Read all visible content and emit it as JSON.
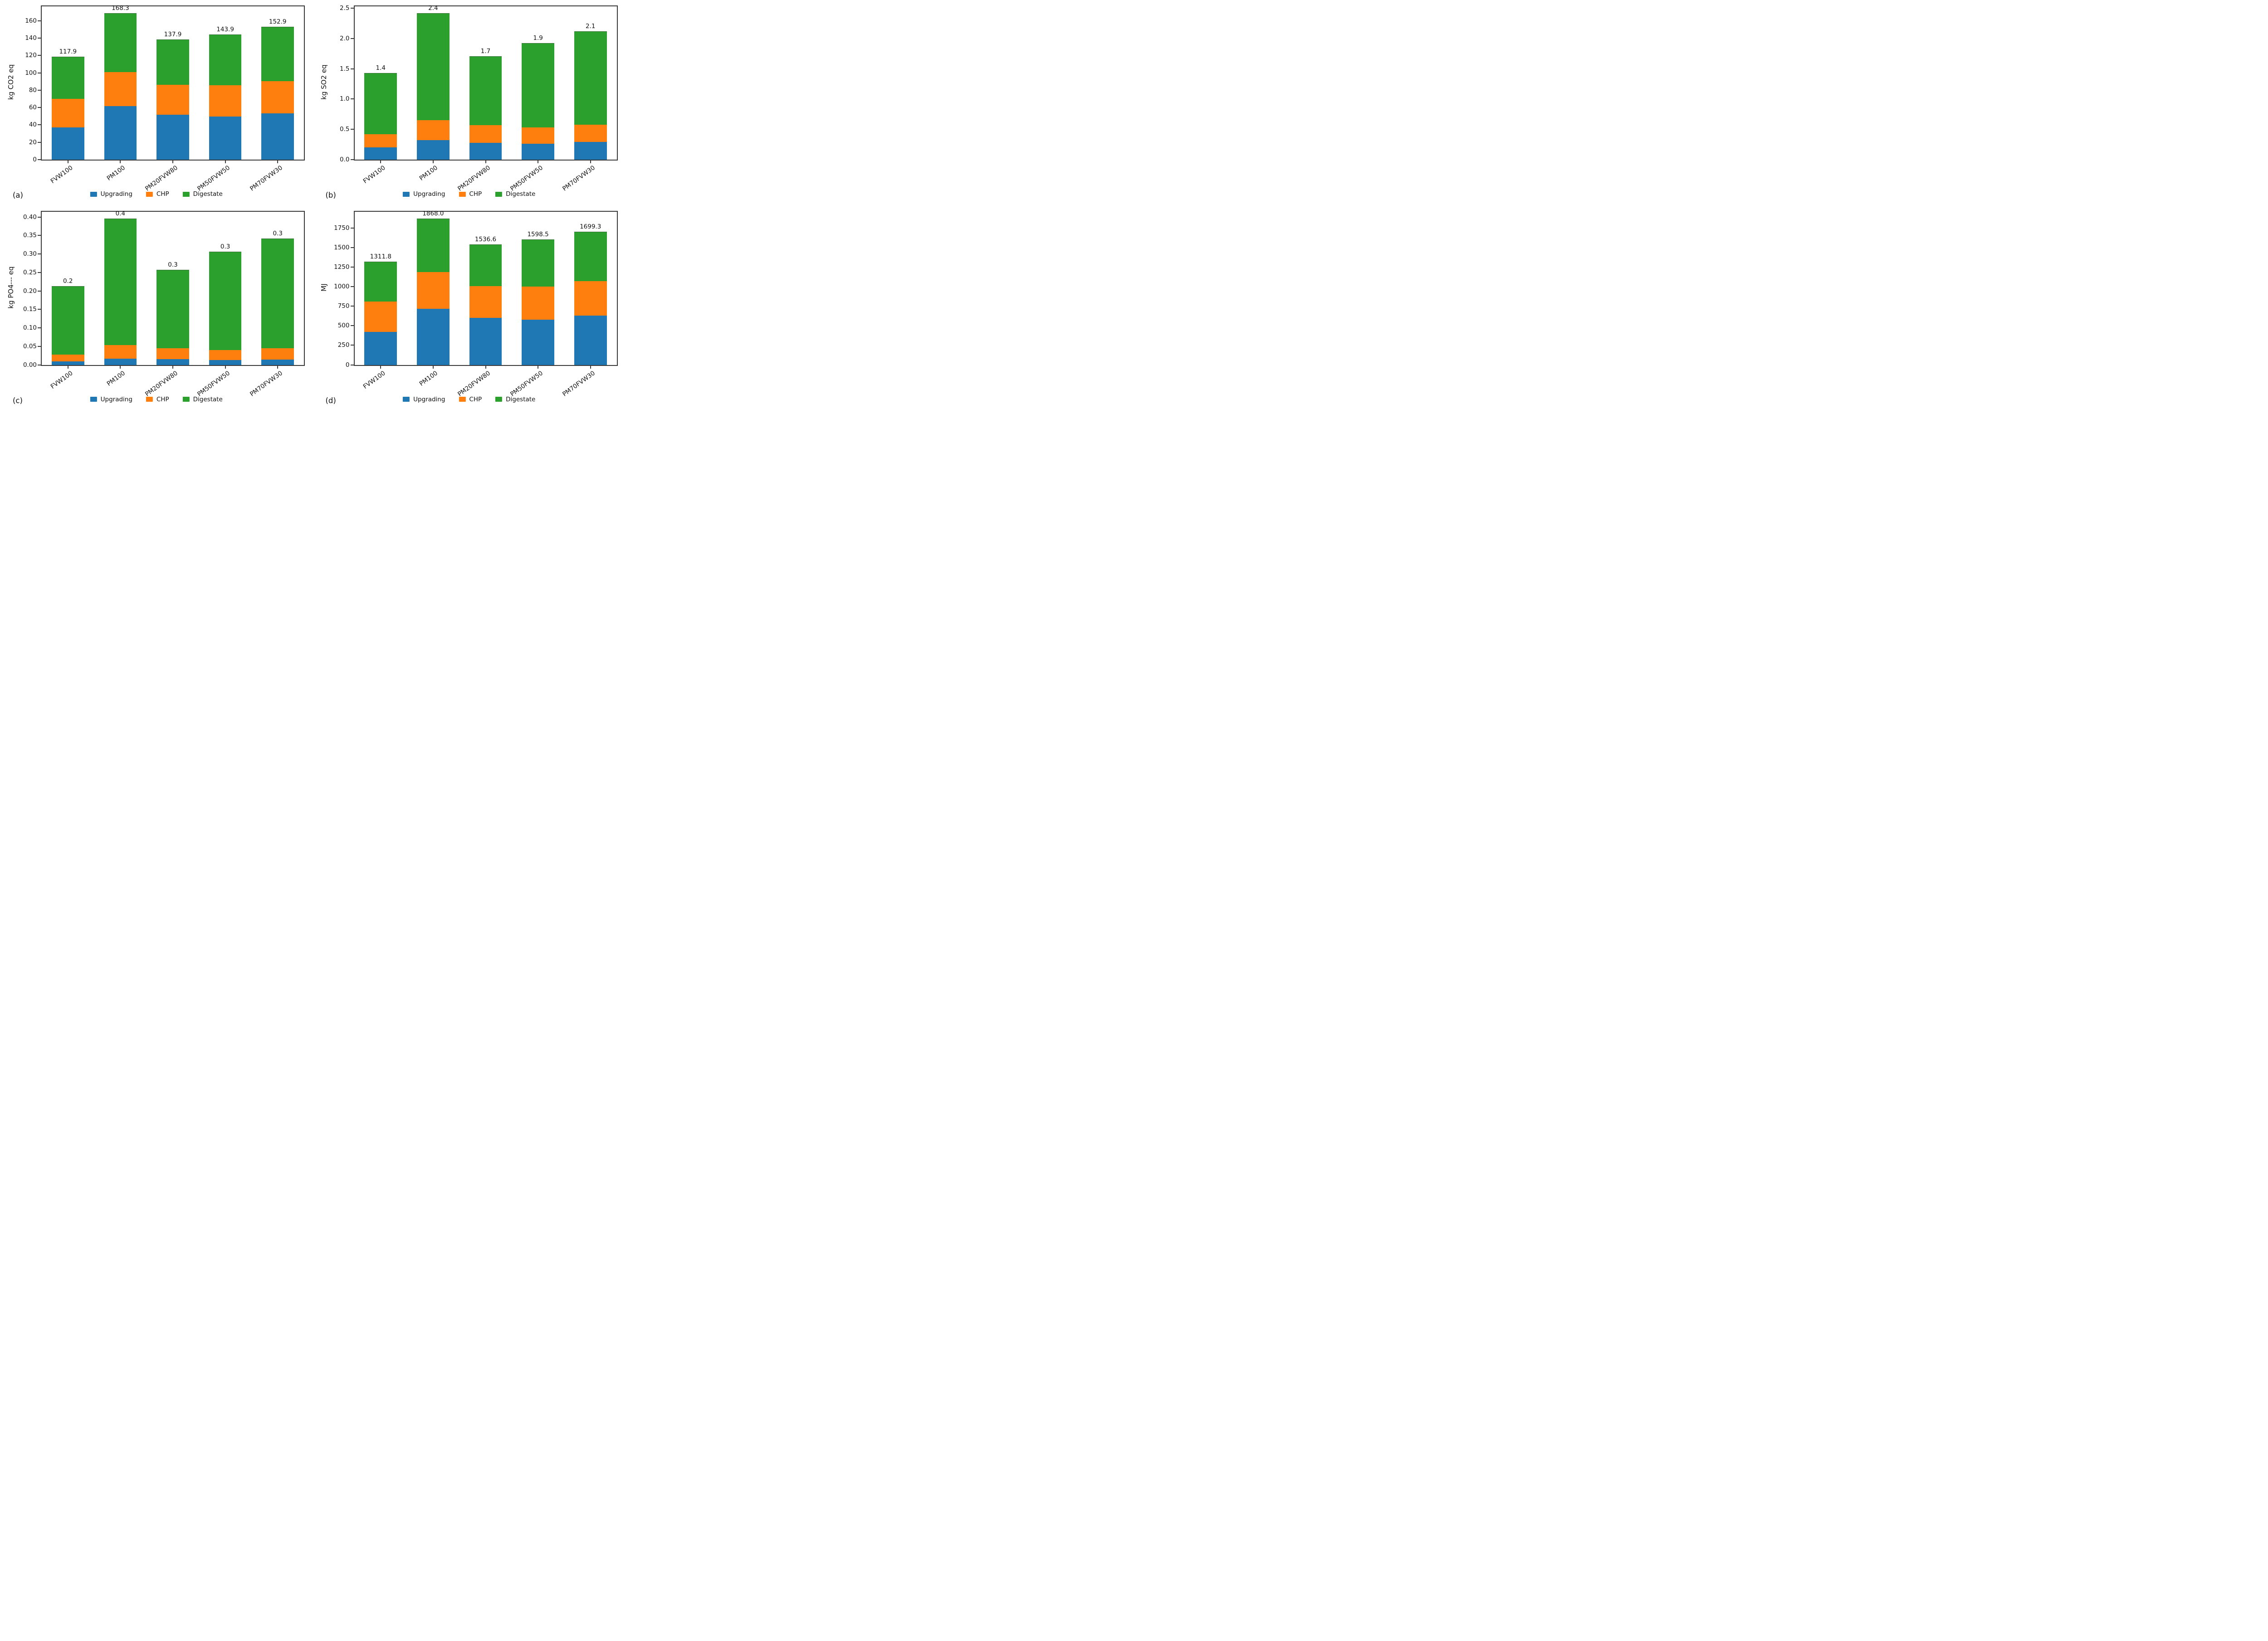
{
  "figure": {
    "background": "#ffffff",
    "text_color": "#111111",
    "spine_color": "#3a3a3a",
    "series_colors": {
      "Upgrading": "#1f77b4",
      "CHP": "#ff7f0e",
      "Digestate": "#2ca02c"
    }
  },
  "chart_data": [
    {
      "type": "bar",
      "stacked": true,
      "panel_label": "(a)",
      "ylabel": "kg CO2 eq",
      "categories": [
        "FVW100",
        "PM100",
        "PM20FVW80",
        "PM50FVW50",
        "PM70FVW30"
      ],
      "series": [
        {
          "name": "Upgrading",
          "color": "#1f77b4",
          "values": [
            37.0,
            61.5,
            52.0,
            49.5,
            53.5
          ]
        },
        {
          "name": "CHP",
          "color": "#ff7f0e",
          "values": [
            33.0,
            39.5,
            34.5,
            36.0,
            37.0
          ]
        },
        {
          "name": "Digestate",
          "color": "#2ca02c",
          "values": [
            47.9,
            67.3,
            51.4,
            58.4,
            62.4
          ]
        }
      ],
      "totals": [
        117.9,
        168.3,
        137.9,
        143.9,
        152.9
      ],
      "total_labels": [
        "117.9",
        "168.3",
        "137.9",
        "143.9",
        "152.9"
      ],
      "yticks": [
        0,
        20,
        40,
        60,
        80,
        100,
        120,
        140,
        160
      ],
      "ytick_labels": [
        "0",
        "20",
        "40",
        "60",
        "80",
        "100",
        "120",
        "140",
        "160"
      ],
      "ylim": [
        0,
        176.7
      ],
      "legend": [
        "Upgrading",
        "CHP",
        "Digestate"
      ],
      "legend_position": "bottom",
      "grid": false
    },
    {
      "type": "bar",
      "stacked": true,
      "panel_label": "(b)",
      "ylabel": "kg SO2 eq",
      "categories": [
        "FVW100",
        "PM100",
        "PM20FVW80",
        "PM50FVW50",
        "PM70FVW30"
      ],
      "series": [
        {
          "name": "Upgrading",
          "color": "#1f77b4",
          "values": [
            0.2,
            0.32,
            0.28,
            0.26,
            0.29
          ]
        },
        {
          "name": "CHP",
          "color": "#ff7f0e",
          "values": [
            0.22,
            0.33,
            0.29,
            0.27,
            0.29
          ]
        },
        {
          "name": "Digestate",
          "color": "#2ca02c",
          "values": [
            1.0,
            1.76,
            1.13,
            1.39,
            1.53
          ]
        }
      ],
      "totals": [
        1.42,
        2.41,
        1.7,
        1.92,
        2.11
      ],
      "total_labels": [
        "1.4",
        "2.4",
        "1.7",
        "1.9",
        "2.1"
      ],
      "yticks": [
        0.0,
        0.5,
        1.0,
        1.5,
        2.0,
        2.5
      ],
      "ytick_labels": [
        "0.0",
        "0.5",
        "1.0",
        "1.5",
        "2.0",
        "2.5"
      ],
      "ylim": [
        0,
        2.53
      ],
      "legend": [
        "Upgrading",
        "CHP",
        "Digestate"
      ],
      "legend_position": "bottom",
      "grid": false
    },
    {
      "type": "bar",
      "stacked": true,
      "panel_label": "(c)",
      "ylabel": "kg PO4--- eq",
      "categories": [
        "FVW100",
        "PM100",
        "PM20FVW80",
        "PM50FVW50",
        "PM70FVW30"
      ],
      "series": [
        {
          "name": "Upgrading",
          "color": "#1f77b4",
          "values": [
            0.009,
            0.017,
            0.015,
            0.013,
            0.014
          ]
        },
        {
          "name": "CHP",
          "color": "#ff7f0e",
          "values": [
            0.019,
            0.036,
            0.03,
            0.027,
            0.031
          ]
        },
        {
          "name": "Digestate",
          "color": "#2ca02c",
          "values": [
            0.184,
            0.342,
            0.211,
            0.265,
            0.296
          ]
        }
      ],
      "totals": [
        0.212,
        0.395,
        0.256,
        0.305,
        0.341
      ],
      "total_labels": [
        "0.2",
        "0.4",
        "0.3",
        "0.3",
        "0.3"
      ],
      "yticks": [
        0.0,
        0.05,
        0.1,
        0.15,
        0.2,
        0.25,
        0.3,
        0.35,
        0.4
      ],
      "ytick_labels": [
        "0.00",
        "0.05",
        "0.10",
        "0.15",
        "0.20",
        "0.25",
        "0.30",
        "0.35",
        "0.40"
      ],
      "ylim": [
        0,
        0.415
      ],
      "legend": [
        "Upgrading",
        "CHP",
        "Digestate"
      ],
      "legend_position": "bottom",
      "grid": false
    },
    {
      "type": "bar",
      "stacked": true,
      "panel_label": "(d)",
      "ylabel": "MJ",
      "categories": [
        "FVW100",
        "PM100",
        "PM20FVW80",
        "PM50FVW50",
        "PM70FVW30"
      ],
      "series": [
        {
          "name": "Upgrading",
          "color": "#1f77b4",
          "values": [
            420.0,
            715.0,
            600.0,
            575.0,
            630.0
          ]
        },
        {
          "name": "CHP",
          "color": "#ff7f0e",
          "values": [
            390.0,
            470.0,
            405.0,
            425.0,
            440.0
          ]
        },
        {
          "name": "Digestate",
          "color": "#2ca02c",
          "values": [
            501.8,
            683.0,
            531.6,
            598.5,
            629.3
          ]
        }
      ],
      "totals": [
        1311.8,
        1868.0,
        1536.6,
        1598.5,
        1699.3
      ],
      "total_labels": [
        "1311.8",
        "1868.0",
        "1536.6",
        "1598.5",
        "1699.3"
      ],
      "yticks": [
        0,
        250,
        500,
        750,
        1000,
        1250,
        1500,
        1750
      ],
      "ytick_labels": [
        "0",
        "250",
        "500",
        "750",
        "1000",
        "1250",
        "1500",
        "1750"
      ],
      "ylim": [
        0,
        1961
      ],
      "legend": [
        "Upgrading",
        "CHP",
        "Digestate"
      ],
      "legend_position": "bottom",
      "grid": false
    }
  ]
}
